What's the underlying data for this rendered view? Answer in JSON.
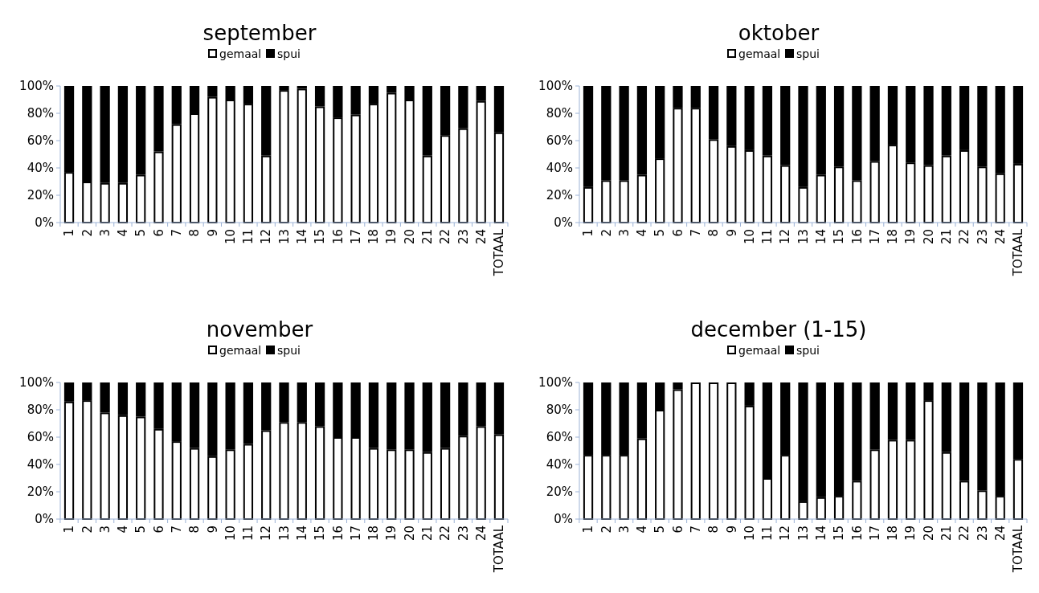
{
  "chart_data": [
    {
      "type": "bar",
      "title": "september",
      "categories": [
        "1",
        "2",
        "3",
        "4",
        "5",
        "6",
        "7",
        "8",
        "9",
        "10",
        "11",
        "12",
        "13",
        "14",
        "15",
        "16",
        "17",
        "18",
        "19",
        "20",
        "21",
        "22",
        "23",
        "24",
        "TOTAAL"
      ],
      "stacked": true,
      "legend": "top",
      "ylim": [
        0,
        100
      ],
      "yticks": [
        {
          "value": 0,
          "label": "0%"
        },
        {
          "value": 20,
          "label": "20%"
        },
        {
          "value": 40,
          "label": "40%"
        },
        {
          "value": 60,
          "label": "60%"
        },
        {
          "value": 80,
          "label": "80%"
        },
        {
          "value": 100,
          "label": "100%"
        }
      ],
      "series": [
        {
          "name": "gemaal",
          "color": "#ffffff",
          "values": [
            37,
            30,
            29,
            29,
            35,
            52,
            72,
            80,
            92,
            90,
            87,
            49,
            97,
            98,
            85,
            77,
            79,
            87,
            95,
            90,
            49,
            64,
            69,
            89,
            66
          ]
        },
        {
          "name": "spui",
          "color": "#000000",
          "values": [
            63,
            70,
            71,
            71,
            65,
            48,
            28,
            20,
            8,
            10,
            13,
            51,
            3,
            2,
            15,
            23,
            21,
            13,
            5,
            10,
            51,
            36,
            31,
            11,
            34
          ]
        }
      ]
    },
    {
      "type": "bar",
      "title": "oktober",
      "categories": [
        "1",
        "2",
        "3",
        "4",
        "5",
        "6",
        "7",
        "8",
        "9",
        "10",
        "11",
        "12",
        "13",
        "14",
        "15",
        "16",
        "17",
        "18",
        "19",
        "20",
        "21",
        "22",
        "23",
        "24",
        "TOTAAL"
      ],
      "stacked": true,
      "legend": "top",
      "ylim": [
        0,
        100
      ],
      "yticks": [
        {
          "value": 0,
          "label": "0%"
        },
        {
          "value": 20,
          "label": "20%"
        },
        {
          "value": 40,
          "label": "40%"
        },
        {
          "value": 60,
          "label": "60%"
        },
        {
          "value": 80,
          "label": "80%"
        },
        {
          "value": 100,
          "label": "100%"
        }
      ],
      "series": [
        {
          "name": "gemaal",
          "color": "#ffffff",
          "values": [
            26,
            31,
            31,
            35,
            47,
            84,
            84,
            61,
            56,
            53,
            49,
            42,
            26,
            35,
            41,
            31,
            45,
            57,
            44,
            42,
            49,
            53,
            41,
            36,
            43
          ]
        },
        {
          "name": "spui",
          "color": "#000000",
          "values": [
            74,
            69,
            69,
            65,
            53,
            16,
            16,
            39,
            44,
            47,
            51,
            58,
            74,
            65,
            59,
            69,
            55,
            43,
            56,
            58,
            51,
            47,
            59,
            64,
            57
          ]
        }
      ]
    },
    {
      "type": "bar",
      "title": "november",
      "categories": [
        "1",
        "2",
        "3",
        "4",
        "5",
        "6",
        "7",
        "8",
        "9",
        "10",
        "11",
        "12",
        "13",
        "14",
        "15",
        "16",
        "17",
        "18",
        "19",
        "20",
        "21",
        "22",
        "23",
        "24",
        "TOTAAL"
      ],
      "stacked": true,
      "legend": "top",
      "ylim": [
        0,
        100
      ],
      "yticks": [
        {
          "value": 0,
          "label": "0%"
        },
        {
          "value": 20,
          "label": "20%"
        },
        {
          "value": 40,
          "label": "40%"
        },
        {
          "value": 60,
          "label": "60%"
        },
        {
          "value": 80,
          "label": "80%"
        },
        {
          "value": 100,
          "label": "100%"
        }
      ],
      "series": [
        {
          "name": "gemaal",
          "color": "#ffffff",
          "values": [
            86,
            87,
            78,
            76,
            75,
            66,
            57,
            52,
            46,
            51,
            55,
            65,
            71,
            71,
            68,
            60,
            60,
            52,
            51,
            51,
            49,
            52,
            61,
            68,
            62
          ]
        },
        {
          "name": "spui",
          "color": "#000000",
          "values": [
            14,
            13,
            22,
            24,
            25,
            34,
            43,
            48,
            54,
            49,
            45,
            35,
            29,
            29,
            32,
            40,
            40,
            48,
            49,
            49,
            51,
            48,
            39,
            32,
            38
          ]
        }
      ]
    },
    {
      "type": "bar",
      "title": "december (1-15)",
      "categories": [
        "1",
        "2",
        "3",
        "4",
        "5",
        "6",
        "7",
        "8",
        "9",
        "10",
        "11",
        "12",
        "13",
        "14",
        "15",
        "16",
        "17",
        "18",
        "19",
        "20",
        "21",
        "22",
        "23",
        "24",
        "TOTAAL"
      ],
      "stacked": true,
      "legend": "top",
      "ylim": [
        0,
        100
      ],
      "yticks": [
        {
          "value": 0,
          "label": "0%"
        },
        {
          "value": 20,
          "label": "20%"
        },
        {
          "value": 40,
          "label": "40%"
        },
        {
          "value": 60,
          "label": "60%"
        },
        {
          "value": 80,
          "label": "80%"
        },
        {
          "value": 100,
          "label": "100%"
        }
      ],
      "series": [
        {
          "name": "gemaal",
          "color": "#ffffff",
          "values": [
            47,
            47,
            47,
            59,
            80,
            95,
            100,
            100,
            100,
            83,
            30,
            47,
            13,
            16,
            17,
            28,
            51,
            58,
            58,
            87,
            49,
            28,
            21,
            17,
            44
          ]
        },
        {
          "name": "spui",
          "color": "#000000",
          "values": [
            53,
            53,
            53,
            41,
            20,
            5,
            0,
            0,
            0,
            17,
            70,
            53,
            87,
            84,
            83,
            72,
            49,
            42,
            42,
            13,
            51,
            72,
            79,
            83,
            56
          ]
        }
      ]
    }
  ]
}
